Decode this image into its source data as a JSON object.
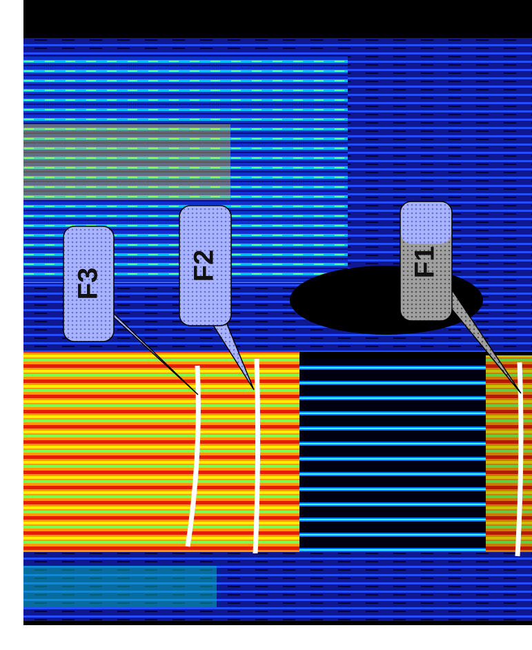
{
  "callouts": [
    {
      "label": "F3"
    },
    {
      "label": "F2"
    },
    {
      "label": "F1"
    }
  ]
}
